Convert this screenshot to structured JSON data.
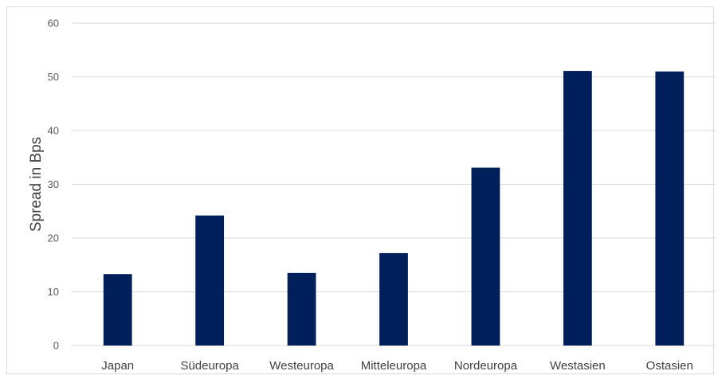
{
  "chart_data": {
    "type": "bar",
    "categories": [
      "Japan",
      "Südeuropa",
      "Westeuropa",
      "Mitteleuropa",
      "Nordeuropa",
      "Westasien",
      "Ostasien"
    ],
    "series": [
      {
        "values": [
          13.3,
          24.2,
          13.5,
          17.2,
          33.1,
          51.1,
          51.0
        ]
      }
    ],
    "title": "",
    "xlabel": "",
    "ylabel": "Spread in Bps",
    "ylim": [
      0,
      60
    ],
    "yticks": [
      0,
      10,
      20,
      30,
      40,
      50,
      60
    ],
    "grid": true,
    "legend": "none",
    "colors": {
      "bar": "#001f5b",
      "grid": "#d9d9d9",
      "frame": "#d9d9d9"
    }
  }
}
